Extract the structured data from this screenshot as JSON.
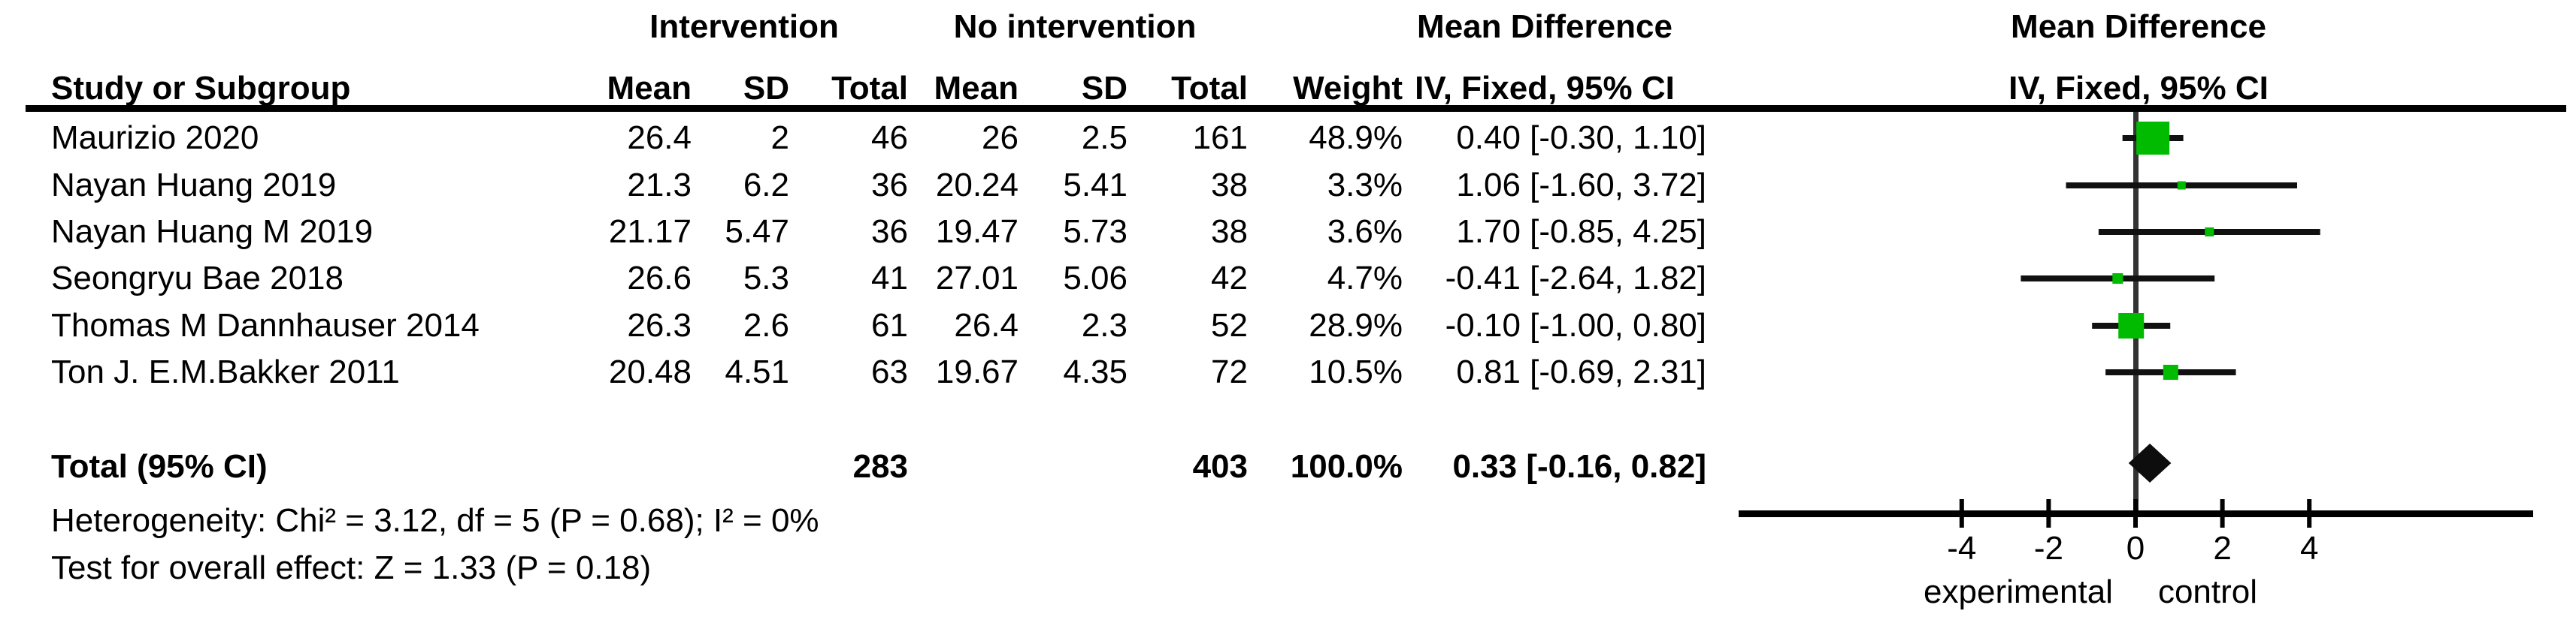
{
  "header": {
    "group_intervention": "Intervention",
    "group_no_intervention": "No intervention",
    "group_mean_difference": "Mean Difference",
    "plot_title_line1": "Mean Difference",
    "col_study": "Study or Subgroup",
    "col_mean": "Mean",
    "col_sd": "SD",
    "col_total": "Total",
    "col_weight": "Weight",
    "col_ci": "IV, Fixed, 95% CI",
    "plot_title_line2": "IV, Fixed, 95% CI"
  },
  "studies": [
    {
      "name": "Maurizio 2020",
      "int_mean": "26.4",
      "int_sd": "2",
      "int_total": "46",
      "ni_mean": "26",
      "ni_sd": "2.5",
      "ni_total": "161",
      "weight": "48.9%",
      "ci": "0.40 [-0.30, 1.10]"
    },
    {
      "name": "Nayan Huang 2019",
      "int_mean": "21.3",
      "int_sd": "6.2",
      "int_total": "36",
      "ni_mean": "20.24",
      "ni_sd": "5.41",
      "ni_total": "38",
      "weight": "3.3%",
      "ci": "1.06 [-1.60, 3.72]"
    },
    {
      "name": "Nayan Huang M 2019",
      "int_mean": "21.17",
      "int_sd": "5.47",
      "int_total": "36",
      "ni_mean": "19.47",
      "ni_sd": "5.73",
      "ni_total": "38",
      "weight": "3.6%",
      "ci": "1.70 [-0.85, 4.25]"
    },
    {
      "name": "Seongryu Bae 2018",
      "int_mean": "26.6",
      "int_sd": "5.3",
      "int_total": "41",
      "ni_mean": "27.01",
      "ni_sd": "5.06",
      "ni_total": "42",
      "weight": "4.7%",
      "ci": "-0.41 [-2.64, 1.82]"
    },
    {
      "name": "Thomas M Dannhauser 2014",
      "int_mean": "26.3",
      "int_sd": "2.6",
      "int_total": "61",
      "ni_mean": "26.4",
      "ni_sd": "2.3",
      "ni_total": "52",
      "weight": "28.9%",
      "ci": "-0.10 [-1.00, 0.80]"
    },
    {
      "name": "Ton J. E.M.Bakker 2011",
      "int_mean": "20.48",
      "int_sd": "4.51",
      "int_total": "63",
      "ni_mean": "19.67",
      "ni_sd": "4.35",
      "ni_total": "72",
      "weight": "10.5%",
      "ci": "0.81 [-0.69, 2.31]"
    }
  ],
  "total_row": {
    "label": "Total (95% CI)",
    "int_total": "283",
    "ni_total": "403",
    "weight": "100.0%",
    "ci": "0.33 [-0.16, 0.82]"
  },
  "footnotes": {
    "heterogeneity": "Heterogeneity: Chi² = 3.12, df = 5 (P = 0.68); I² = 0%",
    "overall_effect": "Test for overall effect: Z = 1.33 (P = 0.18)"
  },
  "axis": {
    "ticks": [
      "-4",
      "-2",
      "0",
      "2",
      "4"
    ],
    "left_label": "experimental",
    "right_label": "control"
  },
  "colors": {
    "square_green": "#00bb00",
    "diamond_black": "#0d0d0d",
    "ci_line": "#111111",
    "zero_line": "#333333",
    "axis_black": "#000000"
  },
  "chart_data": {
    "type": "forest",
    "title": "Mean Difference",
    "effect_measure": "IV, Fixed, 95% CI",
    "x_ticks": [
      -4,
      -2,
      0,
      2,
      4
    ],
    "x_axis_left_label": "experimental",
    "x_axis_right_label": "control",
    "studies": [
      {
        "name": "Maurizio 2020",
        "md": 0.4,
        "ci_low": -0.3,
        "ci_high": 1.1,
        "weight_pct": 48.9
      },
      {
        "name": "Nayan Huang 2019",
        "md": 1.06,
        "ci_low": -1.6,
        "ci_high": 3.72,
        "weight_pct": 3.3
      },
      {
        "name": "Nayan Huang M 2019",
        "md": 1.7,
        "ci_low": -0.85,
        "ci_high": 4.25,
        "weight_pct": 3.6
      },
      {
        "name": "Seongryu Bae 2018",
        "md": -0.41,
        "ci_low": -2.64,
        "ci_high": 1.82,
        "weight_pct": 4.7
      },
      {
        "name": "Thomas M Dannhauser 2014",
        "md": -0.1,
        "ci_low": -1.0,
        "ci_high": 0.8,
        "weight_pct": 28.9
      },
      {
        "name": "Ton J. E.M.Bakker 2011",
        "md": 0.81,
        "ci_low": -0.69,
        "ci_high": 2.31,
        "weight_pct": 10.5
      }
    ],
    "total": {
      "md": 0.33,
      "ci_low": -0.16,
      "ci_high": 0.82,
      "weight_pct": 100.0
    }
  }
}
